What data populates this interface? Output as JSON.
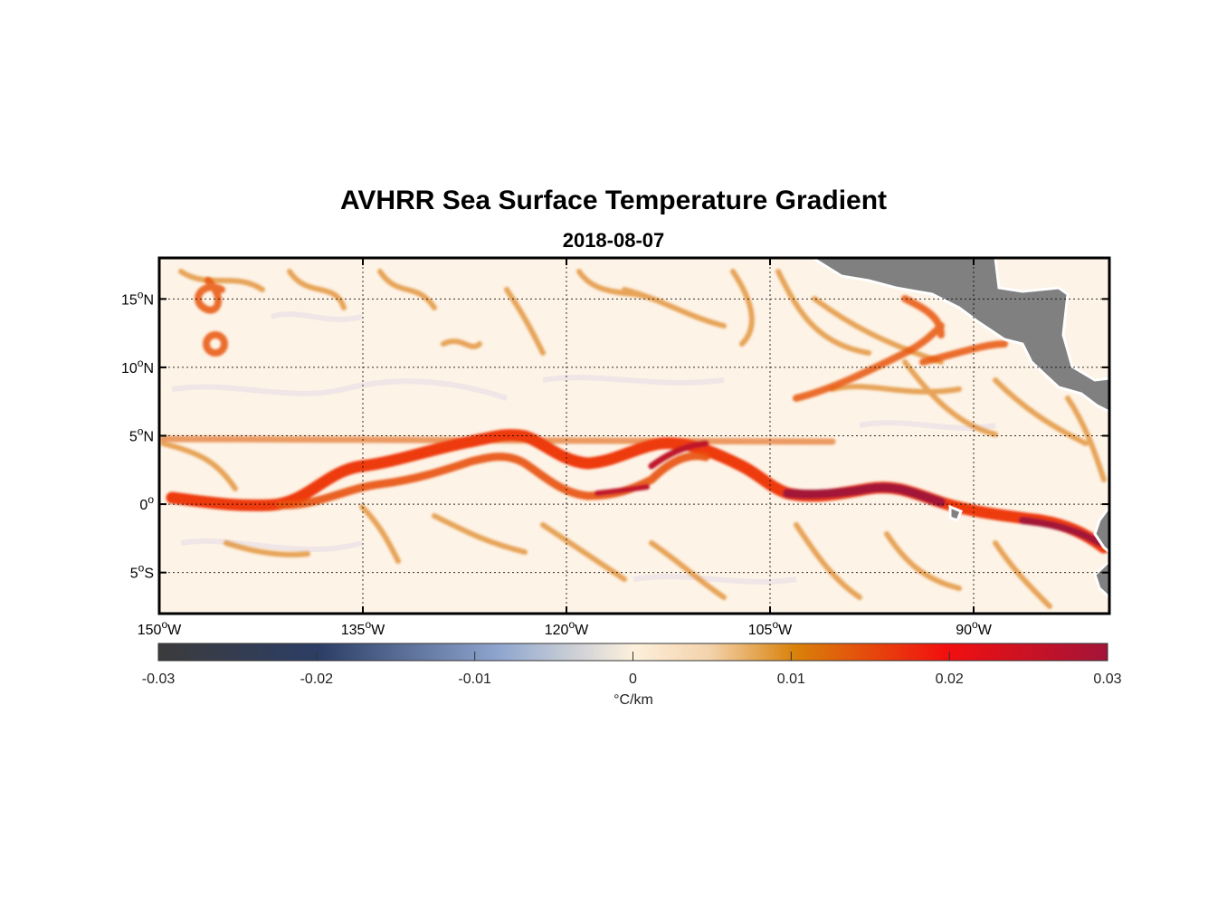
{
  "title": "AVHRR Sea Surface Temperature Gradient",
  "subtitle": "2018-08-07",
  "map": {
    "lon_range": [
      -150,
      -80
    ],
    "lat_range": [
      -8,
      18
    ],
    "lon_ticks": [
      {
        "value": -150,
        "label": "150",
        "suffix": "W"
      },
      {
        "value": -135,
        "label": "135",
        "suffix": "W"
      },
      {
        "value": -120,
        "label": "120",
        "suffix": "W"
      },
      {
        "value": -105,
        "label": "105",
        "suffix": "W"
      },
      {
        "value": -90,
        "label": "90",
        "suffix": "W"
      }
    ],
    "lat_ticks": [
      {
        "value": 15,
        "label": "15",
        "suffix": "N"
      },
      {
        "value": 10,
        "label": "10",
        "suffix": "N"
      },
      {
        "value": 5,
        "label": "5",
        "suffix": "N"
      },
      {
        "value": 0,
        "label": "0",
        "suffix": ""
      },
      {
        "value": -5,
        "label": "5",
        "suffix": "S"
      }
    ],
    "land_color": "#808080",
    "ocean_background": "#fdf3e6"
  },
  "colorbar": {
    "min": -0.03,
    "max": 0.03,
    "ticks": [
      "-0.03",
      "-0.02",
      "-0.01",
      "0",
      "0.01",
      "0.02",
      "0.03"
    ],
    "unit": "°C/km",
    "stops": [
      "#3b3b3b",
      "#2c3e66",
      "#8fa6cf",
      "#fdf0dc",
      "#d9820a",
      "#f20f0f",
      "#a31439"
    ]
  }
}
